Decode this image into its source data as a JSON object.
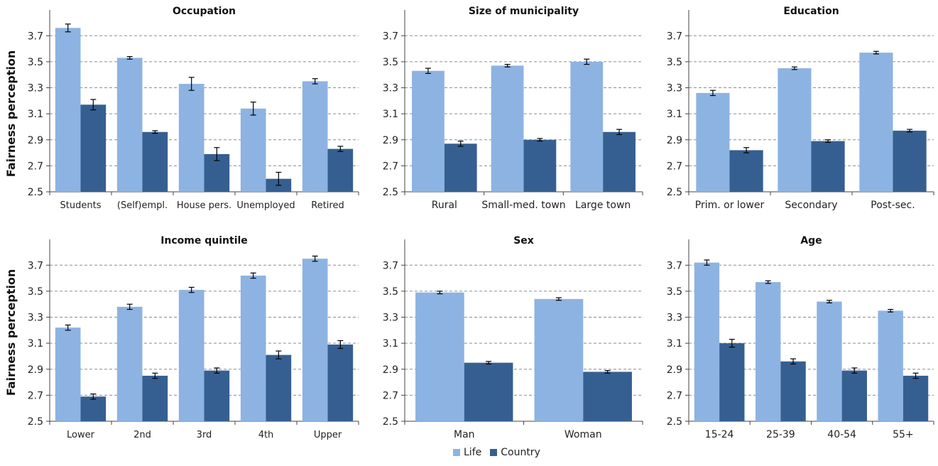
{
  "ylabel": "Fairness perception",
  "legend": [
    {
      "label": "Life",
      "color": "#8db3e2"
    },
    {
      "label": "Country",
      "color": "#365f91"
    }
  ],
  "chart_data": [
    {
      "type": "bar",
      "title": "Occupation",
      "ylim": [
        2.5,
        3.8
      ],
      "yticks": [
        "2.5",
        "2.7",
        "2.9",
        "3.1",
        "3.3",
        "3.5",
        "3.7"
      ],
      "categories": [
        "Students",
        "(Self)empl.",
        "House pers.",
        "Unemployed",
        "Retired"
      ],
      "series": [
        {
          "name": "Life",
          "values": [
            3.76,
            3.53,
            3.33,
            3.14,
            3.35
          ],
          "err": [
            0.03,
            0.01,
            0.05,
            0.05,
            0.02
          ]
        },
        {
          "name": "Country",
          "values": [
            3.17,
            2.96,
            2.79,
            2.6,
            2.83
          ],
          "err": [
            0.04,
            0.01,
            0.05,
            0.05,
            0.02
          ]
        }
      ]
    },
    {
      "type": "bar",
      "title": "Size of municipality",
      "ylim": [
        2.5,
        3.8
      ],
      "yticks": [
        "2.5",
        "2.7",
        "2.9",
        "3.1",
        "3.3",
        "3.5",
        "3.7"
      ],
      "categories": [
        "Rural",
        "Small-med. town",
        "Large town"
      ],
      "series": [
        {
          "name": "Life",
          "values": [
            3.43,
            3.47,
            3.5
          ],
          "err": [
            0.02,
            0.01,
            0.02
          ]
        },
        {
          "name": "Country",
          "values": [
            2.87,
            2.9,
            2.96
          ],
          "err": [
            0.02,
            0.01,
            0.02
          ]
        }
      ]
    },
    {
      "type": "bar",
      "title": "Education",
      "ylim": [
        2.5,
        3.8
      ],
      "yticks": [
        "2.5",
        "2.7",
        "2.9",
        "3.1",
        "3.3",
        "3.5",
        "3.7"
      ],
      "categories": [
        "Prim. or lower",
        "Secondary",
        "Post-sec."
      ],
      "series": [
        {
          "name": "Life",
          "values": [
            3.26,
            3.45,
            3.57
          ],
          "err": [
            0.02,
            0.01,
            0.01
          ]
        },
        {
          "name": "Country",
          "values": [
            2.82,
            2.89,
            2.97
          ],
          "err": [
            0.02,
            0.01,
            0.01
          ]
        }
      ]
    },
    {
      "type": "bar",
      "title": "Income quintile",
      "ylim": [
        2.5,
        3.8
      ],
      "yticks": [
        "2.5",
        "2.7",
        "2.9",
        "3.1",
        "3.3",
        "3.5",
        "3.7"
      ],
      "categories": [
        "Lower",
        "2nd",
        "3rd",
        "4th",
        "Upper"
      ],
      "series": [
        {
          "name": "Life",
          "values": [
            3.22,
            3.38,
            3.51,
            3.62,
            3.75
          ],
          "err": [
            0.02,
            0.02,
            0.02,
            0.02,
            0.02
          ]
        },
        {
          "name": "Country",
          "values": [
            2.69,
            2.85,
            2.89,
            3.01,
            3.09
          ],
          "err": [
            0.02,
            0.02,
            0.02,
            0.03,
            0.03
          ]
        }
      ]
    },
    {
      "type": "bar",
      "title": "Sex",
      "ylim": [
        2.5,
        3.8
      ],
      "yticks": [
        "2.5",
        "2.7",
        "2.9",
        "3.1",
        "3.3",
        "3.5",
        "3.7"
      ],
      "categories": [
        "Man",
        "Woman"
      ],
      "series": [
        {
          "name": "Life",
          "values": [
            3.49,
            3.44
          ],
          "err": [
            0.01,
            0.01
          ]
        },
        {
          "name": "Country",
          "values": [
            2.95,
            2.88
          ],
          "err": [
            0.01,
            0.01
          ]
        }
      ]
    },
    {
      "type": "bar",
      "title": "Age",
      "ylim": [
        2.5,
        3.8
      ],
      "yticks": [
        "2.5",
        "2.7",
        "2.9",
        "3.1",
        "3.3",
        "3.5",
        "3.7"
      ],
      "categories": [
        "15-24",
        "25-39",
        "40-54",
        "55+"
      ],
      "series": [
        {
          "name": "Life",
          "values": [
            3.72,
            3.57,
            3.42,
            3.35
          ],
          "err": [
            0.02,
            0.01,
            0.01,
            0.01
          ]
        },
        {
          "name": "Country",
          "values": [
            3.1,
            2.96,
            2.89,
            2.85
          ],
          "err": [
            0.03,
            0.02,
            0.02,
            0.02
          ]
        }
      ]
    }
  ]
}
